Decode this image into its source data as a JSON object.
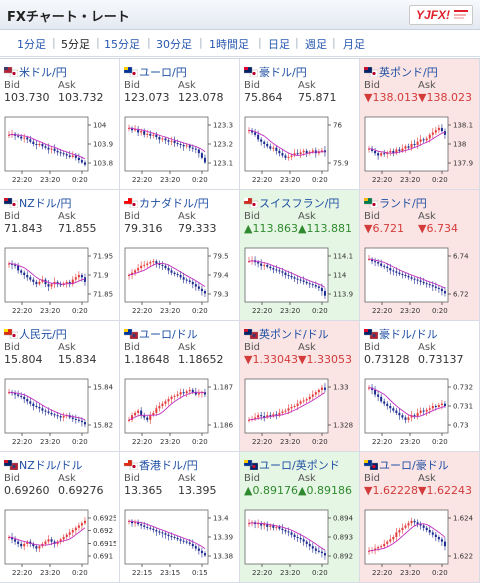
{
  "header": {
    "title": "FXチャート・レート",
    "logo_text": "YJFX!"
  },
  "tabs": [
    {
      "label": "1分足",
      "active": false
    },
    {
      "label": "5分足",
      "active": true
    },
    {
      "label": "15分足",
      "active": false
    },
    {
      "label": "30分足",
      "active": false
    },
    {
      "label": "1時間足",
      "active": false
    },
    {
      "label": "日足",
      "active": false
    },
    {
      "label": "週足",
      "active": false
    },
    {
      "label": "月足",
      "active": false
    }
  ],
  "labels": {
    "bid": "Bid",
    "ask": "Ask"
  },
  "colors": {
    "up": "#e6f6e4",
    "down": "#fbe4e4",
    "candle_up": "#e23b3b",
    "candle_down": "#1b2a8f",
    "ma": "#c22fbf"
  },
  "pairs": [
    {
      "name": "米ドル/円",
      "bid": "103.730",
      "ask": "103.732",
      "trend": "none",
      "flag": "us-jp",
      "chart_data": {
        "type": "candlestick",
        "ticks": [
          "104",
          "103.9",
          "103.8"
        ],
        "ylim": [
          103.74,
          104.04
        ],
        "xlabels": [
          "22:20",
          "23:20",
          "0:20"
        ],
        "shape": [
          0.7,
          0.72,
          0.68,
          0.66,
          0.62,
          0.64,
          0.6,
          0.55,
          0.5,
          0.48,
          0.5,
          0.45,
          0.42,
          0.38,
          0.4,
          0.35,
          0.32,
          0.3,
          0.28,
          0.25,
          0.22,
          0.25,
          0.2,
          0.15,
          0.1,
          0.05
        ]
      }
    },
    {
      "name": "ユーロ/円",
      "bid": "123.073",
      "ask": "123.078",
      "trend": "none",
      "flag": "eu-jp",
      "chart_data": {
        "type": "candlestick",
        "ticks": [
          "123.3",
          "123.2",
          "123.1"
        ],
        "ylim": [
          123.03,
          123.37
        ],
        "xlabels": [
          "22:20",
          "23:20",
          "0:20"
        ],
        "shape": [
          0.85,
          0.8,
          0.82,
          0.75,
          0.78,
          0.7,
          0.72,
          0.68,
          0.7,
          0.65,
          0.6,
          0.62,
          0.58,
          0.55,
          0.57,
          0.52,
          0.5,
          0.48,
          0.45,
          0.47,
          0.42,
          0.4,
          0.38,
          0.3,
          0.2,
          0.1
        ]
      }
    },
    {
      "name": "豪ドル/円",
      "bid": "75.864",
      "ask": "75.871",
      "trend": "none",
      "flag": "au-jp",
      "chart_data": {
        "type": "candlestick",
        "ticks": [
          "76",
          "75.9"
        ],
        "ylim": [
          75.83,
          76.08
        ],
        "xlabels": [
          "22:20",
          "23:20",
          "0:20"
        ],
        "shape": [
          0.8,
          0.75,
          0.7,
          0.6,
          0.55,
          0.5,
          0.45,
          0.4,
          0.42,
          0.35,
          0.3,
          0.25,
          0.2,
          0.22,
          0.25,
          0.3,
          0.28,
          0.32,
          0.35,
          0.3,
          0.33,
          0.36,
          0.3,
          0.34,
          0.36,
          0.32
        ]
      }
    },
    {
      "name": "英ポンド/円",
      "bid": "138.013",
      "ask": "138.023",
      "trend": "down",
      "flag": "gb-jp",
      "chart_data": {
        "type": "candlestick",
        "ticks": [
          "138.1",
          "138",
          "137.9"
        ],
        "ylim": [
          137.86,
          138.16
        ],
        "xlabels": [
          "22:20",
          "23:20",
          "0:20"
        ],
        "shape": [
          0.4,
          0.35,
          0.3,
          0.25,
          0.3,
          0.28,
          0.32,
          0.35,
          0.3,
          0.38,
          0.35,
          0.4,
          0.45,
          0.42,
          0.5,
          0.48,
          0.55,
          0.6,
          0.58,
          0.62,
          0.7,
          0.75,
          0.8,
          0.85,
          0.78,
          0.7
        ]
      }
    },
    {
      "name": "NZドル/円",
      "bid": "71.843",
      "ask": "71.855",
      "trend": "none",
      "flag": "nz-jp",
      "chart_data": {
        "type": "candlestick",
        "ticks": [
          "71.95",
          "71.9",
          "71.85"
        ],
        "ylim": [
          71.82,
          71.98
        ],
        "xlabels": [
          "22:20",
          "23:20",
          "0:20"
        ],
        "shape": [
          0.75,
          0.72,
          0.7,
          0.6,
          0.55,
          0.5,
          0.45,
          0.4,
          0.35,
          0.3,
          0.35,
          0.4,
          0.3,
          0.25,
          0.3,
          0.35,
          0.3,
          0.28,
          0.32,
          0.35,
          0.3,
          0.4,
          0.45,
          0.5,
          0.45,
          0.35
        ]
      }
    },
    {
      "name": "カナダドル/円",
      "bid": "79.316",
      "ask": "79.333",
      "trend": "none",
      "flag": "ca-jp",
      "chart_data": {
        "type": "candlestick",
        "ticks": [
          "79.5",
          "79.4",
          "79.3"
        ],
        "ylim": [
          79.28,
          79.56
        ],
        "xlabels": [
          "22:20",
          "23:20",
          "0:20"
        ],
        "shape": [
          0.5,
          0.55,
          0.6,
          0.65,
          0.7,
          0.72,
          0.75,
          0.78,
          0.8,
          0.75,
          0.72,
          0.7,
          0.65,
          0.6,
          0.55,
          0.52,
          0.5,
          0.45,
          0.4,
          0.38,
          0.35,
          0.3,
          0.25,
          0.2,
          0.15,
          0.1
        ]
      }
    },
    {
      "name": "スイスフラン/円",
      "bid": "113.863",
      "ask": "113.881",
      "trend": "up",
      "flag": "ch-jp",
      "chart_data": {
        "type": "candlestick",
        "ticks": [
          "114.1",
          "114",
          "113.9"
        ],
        "ylim": [
          113.83,
          114.12
        ],
        "xlabels": [
          "22:20",
          "23:20",
          "0:20"
        ],
        "shape": [
          0.8,
          0.82,
          0.78,
          0.75,
          0.7,
          0.72,
          0.68,
          0.65,
          0.62,
          0.6,
          0.58,
          0.55,
          0.5,
          0.48,
          0.45,
          0.42,
          0.4,
          0.38,
          0.35,
          0.32,
          0.3,
          0.28,
          0.25,
          0.22,
          0.15,
          0.05
        ]
      }
    },
    {
      "name": "ランド/円",
      "bid": "6.721",
      "ask": "6.734",
      "trend": "down",
      "flag": "za-jp",
      "chart_data": {
        "type": "candlestick",
        "ticks": [
          "6.74",
          "6.72"
        ],
        "ylim": [
          6.715,
          6.765
        ],
        "xlabels": [
          "22:20",
          "23:20",
          "0:20"
        ],
        "shape": [
          0.85,
          0.8,
          0.78,
          0.75,
          0.7,
          0.68,
          0.65,
          0.6,
          0.58,
          0.55,
          0.52,
          0.5,
          0.48,
          0.45,
          0.42,
          0.4,
          0.38,
          0.35,
          0.32,
          0.3,
          0.28,
          0.25,
          0.22,
          0.2,
          0.15,
          0.1
        ]
      }
    },
    {
      "name": "人民元/円",
      "bid": "15.804",
      "ask": "15.834",
      "trend": "none",
      "flag": "cn-jp",
      "chart_data": {
        "type": "candlestick",
        "ticks": [
          "15.84",
          "15.82"
        ],
        "ylim": [
          15.805,
          15.855
        ],
        "xlabels": [
          "22:20",
          "23:20",
          "0:20"
        ],
        "shape": [
          0.8,
          0.78,
          0.75,
          0.72,
          0.7,
          0.65,
          0.6,
          0.55,
          0.5,
          0.48,
          0.45,
          0.4,
          0.38,
          0.35,
          0.32,
          0.3,
          0.28,
          0.25,
          0.28,
          0.3,
          0.25,
          0.22,
          0.2,
          0.18,
          0.15,
          0.1
        ]
      }
    },
    {
      "name": "ユーロ/ドル",
      "bid": "1.18648",
      "ask": "1.18652",
      "trend": "none",
      "flag": "eu-us",
      "chart_data": {
        "type": "candlestick",
        "ticks": [
          "1.187",
          "1.186"
        ],
        "ylim": [
          1.1848,
          1.1876
        ],
        "xlabels": [
          "22:20",
          "23:20",
          "0:20"
        ],
        "shape": [
          0.2,
          0.3,
          0.35,
          0.4,
          0.3,
          0.25,
          0.2,
          0.3,
          0.35,
          0.45,
          0.5,
          0.55,
          0.6,
          0.65,
          0.7,
          0.72,
          0.75,
          0.8,
          0.78,
          0.82,
          0.85,
          0.8,
          0.75,
          0.78,
          0.8,
          0.75
        ]
      }
    },
    {
      "name": "英ポンド/ドル",
      "bid": "1.33043",
      "ask": "1.33053",
      "trend": "down",
      "flag": "gb-us",
      "chart_data": {
        "type": "candlestick",
        "ticks": [
          "1.33",
          "1.328"
        ],
        "ylim": [
          1.3265,
          1.3315
        ],
        "xlabels": [
          "22:20",
          "23:20",
          "0:20"
        ],
        "shape": [
          0.2,
          0.22,
          0.25,
          0.3,
          0.28,
          0.25,
          0.3,
          0.28,
          0.32,
          0.3,
          0.35,
          0.38,
          0.4,
          0.45,
          0.48,
          0.5,
          0.55,
          0.6,
          0.62,
          0.65,
          0.7,
          0.75,
          0.8,
          0.85,
          0.9,
          0.85
        ]
      }
    },
    {
      "name": "豪ドル/ドル",
      "bid": "0.73128",
      "ask": "0.73137",
      "trend": "none",
      "flag": "au-us",
      "chart_data": {
        "type": "candlestick",
        "ticks": [
          "0.732",
          "0.731",
          "0.73"
        ],
        "ylim": [
          0.7295,
          0.7325
        ],
        "xlabels": [
          "22:20",
          "23:20",
          "0:20"
        ],
        "shape": [
          0.9,
          0.85,
          0.75,
          0.7,
          0.6,
          0.55,
          0.5,
          0.45,
          0.4,
          0.35,
          0.3,
          0.25,
          0.2,
          0.25,
          0.3,
          0.28,
          0.35,
          0.4,
          0.38,
          0.42,
          0.45,
          0.5,
          0.48,
          0.52,
          0.55,
          0.5
        ]
      }
    },
    {
      "name": "NZドル/ドル",
      "bid": "0.69260",
      "ask": "0.69276",
      "trend": "none",
      "flag": "nz-us",
      "chart_data": {
        "type": "candlestick",
        "ticks": [
          "0.6925",
          "0.692",
          "0.6915",
          "0.691"
        ],
        "ylim": [
          0.6906,
          0.693
        ],
        "xlabels": [
          "22:20",
          "23:20",
          "0:20"
        ],
        "shape": [
          0.5,
          0.45,
          0.4,
          0.35,
          0.3,
          0.35,
          0.4,
          0.35,
          0.3,
          0.25,
          0.3,
          0.35,
          0.4,
          0.45,
          0.4,
          0.35,
          0.4,
          0.45,
          0.5,
          0.55,
          0.6,
          0.65,
          0.7,
          0.75,
          0.8,
          0.85
        ]
      }
    },
    {
      "name": "香港ドル/円",
      "bid": "13.365",
      "ask": "13.395",
      "trend": "none",
      "flag": "hk-jp",
      "chart_data": {
        "type": "candlestick",
        "ticks": [
          "13.4",
          "13.39",
          "13.38"
        ],
        "ylim": [
          13.372,
          13.405
        ],
        "xlabels": [
          "22:15",
          "23:15",
          "0:15"
        ],
        "shape": [
          0.85,
          0.8,
          0.82,
          0.78,
          0.75,
          0.72,
          0.7,
          0.68,
          0.65,
          0.62,
          0.6,
          0.58,
          0.55,
          0.52,
          0.5,
          0.48,
          0.45,
          0.42,
          0.4,
          0.38,
          0.35,
          0.3,
          0.25,
          0.2,
          0.15,
          0.1
        ]
      }
    },
    {
      "name": "ユーロ/英ポンド",
      "bid": "0.89176",
      "ask": "0.89186",
      "trend": "up",
      "flag": "eu-gb",
      "chart_data": {
        "type": "candlestick",
        "ticks": [
          "0.894",
          "0.893",
          "0.892"
        ],
        "ylim": [
          0.8915,
          0.8945
        ],
        "xlabels": [
          "22:20",
          "23:20",
          "0:20"
        ],
        "shape": [
          0.8,
          0.82,
          0.78,
          0.8,
          0.75,
          0.78,
          0.72,
          0.75,
          0.7,
          0.72,
          0.68,
          0.65,
          0.62,
          0.6,
          0.55,
          0.5,
          0.48,
          0.45,
          0.4,
          0.35,
          0.3,
          0.25,
          0.2,
          0.18,
          0.15,
          0.1
        ]
      }
    },
    {
      "name": "ユーロ/豪ドル",
      "bid": "1.62228",
      "ask": "1.62243",
      "trend": "down",
      "flag": "eu-au",
      "chart_data": {
        "type": "candlestick",
        "ticks": [
          "1.624",
          "1.622"
        ],
        "ylim": [
          1.621,
          1.626
        ],
        "xlabels": [
          "22:20",
          "23:20",
          "0:20"
        ],
        "shape": [
          0.2,
          0.22,
          0.25,
          0.28,
          0.3,
          0.35,
          0.4,
          0.45,
          0.5,
          0.6,
          0.65,
          0.7,
          0.75,
          0.8,
          0.85,
          0.82,
          0.78,
          0.75,
          0.7,
          0.65,
          0.6,
          0.55,
          0.5,
          0.45,
          0.4,
          0.3
        ]
      }
    }
  ]
}
